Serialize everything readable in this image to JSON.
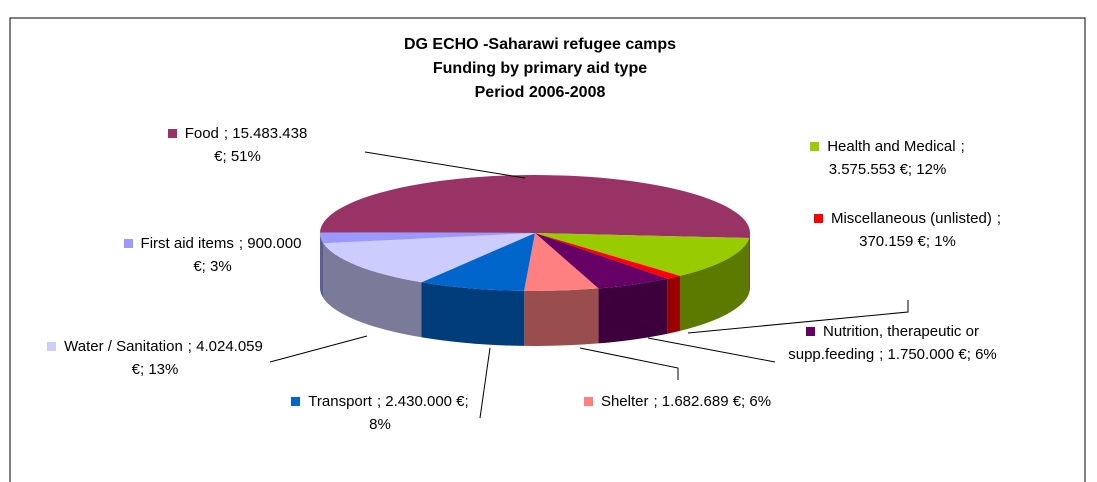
{
  "chart_data": {
    "type": "pie",
    "title": [
      "DG ECHO -Saharawi refugee camps",
      "Funding by primary aid type",
      "Period 2006-2008"
    ],
    "categories": [
      "Food",
      "Health and Medical",
      "Miscellaneous (unlisted)",
      "Nutrition, therapeutic or supp.feeding",
      "Shelter",
      "Transport",
      "Water / Sanitation",
      "First aid items"
    ],
    "values": [
      15483438,
      3575553,
      370159,
      1750000,
      1682689,
      2430000,
      4024059,
      900000
    ],
    "value_labels": [
      "; 15.483.438 €; 51%",
      "; 3.575.553 €; 12%",
      "; 370.159 €; 1%",
      "; 1.750.000 €; 6%",
      "; 1.682.689 €; 6%",
      "; 2.430.000 €; 8%",
      "; 4.024.059 €; 13%",
      "; 900.000 €; 3%"
    ],
    "colors": [
      "#993366",
      "#99cc00",
      "#ff0000",
      "#660066",
      "#ff8080",
      "#0066cc",
      "#ccccff",
      "#9999ff"
    ]
  }
}
